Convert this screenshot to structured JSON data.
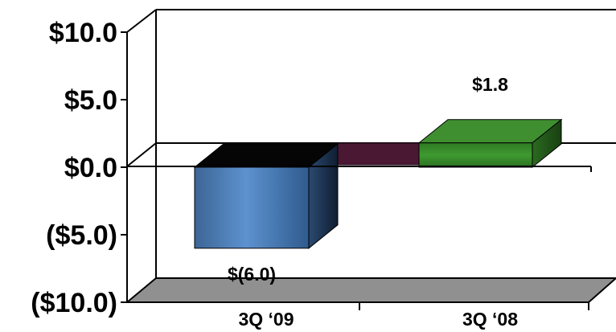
{
  "chart_data": {
    "type": "bar",
    "style": "3d-column",
    "categories": [
      "3Q ‘09",
      "3Q ‘08"
    ],
    "values": [
      -6.0,
      1.8
    ],
    "data_labels": [
      "$(6.0)",
      "$1.8"
    ],
    "colors": [
      "#4f81bd",
      "#3c8a2e"
    ],
    "ylim": [
      -10.0,
      10.0
    ],
    "yticks": [
      10.0,
      5.0,
      0.0,
      -5.0,
      -10.0
    ],
    "ytick_labels": [
      "$10.0",
      "$5.0",
      "$0.0",
      "($5.0)",
      "($10.0)"
    ],
    "grid": false,
    "legend": "none",
    "title": "",
    "xlabel": "",
    "ylabel": ""
  }
}
